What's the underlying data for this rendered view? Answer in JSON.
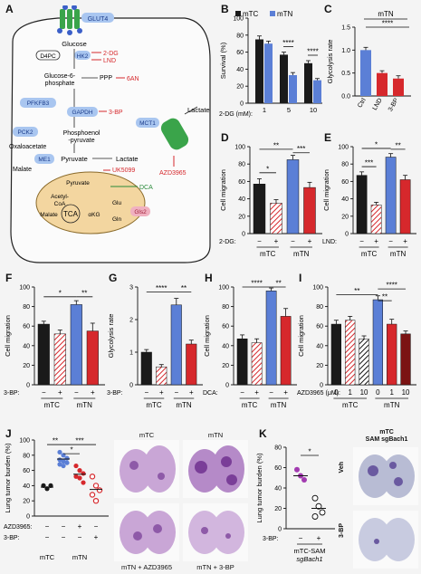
{
  "panel_labels": [
    "A",
    "B",
    "C",
    "D",
    "E",
    "F",
    "G",
    "H",
    "I",
    "J",
    "K"
  ],
  "colors": {
    "mTC": "#1a1a1a",
    "mTN": "#5b7fd6",
    "treat_red": "#d6282c",
    "dark_red": "#7b1313",
    "grey": "#888888"
  },
  "pathway": {
    "labels": {
      "glut4": "GLUT4",
      "glucose": "Glucose",
      "d4pc": "D4PC",
      "hk2": "HK2",
      "dg2": "2-DG",
      "lnd": "LND",
      "g6p": "Glucose-6-\nphosphate",
      "ppp": "PPP",
      "an6": "6AN",
      "pfkfb3": "PFKFB3",
      "gapdh": "GAPDH",
      "bp3": "3-BP",
      "pck2": "PCK2",
      "pep": "Phosphoenol\n-pyruvate",
      "oaa": "Oxaloacetate",
      "me1": "ME1",
      "malate": "Malate",
      "pyruvate": "Pyruvate",
      "lactate": "Lactate",
      "lactate_out": "Lactate",
      "mct1": "MCT1",
      "azd": "AZD3965",
      "uk5099": "UK5099",
      "dca": "DCA",
      "acetylcoa": "Acetyl-\nCoA",
      "tca": "TCA",
      "akg": "αKG",
      "malate2": "Malate",
      "pyruvate2": "Pyruvate",
      "glu": "Glu",
      "gln": "Gln",
      "gls2": "Gls2"
    }
  },
  "chart_data": [
    {
      "id": "B",
      "type": "bar",
      "ylabel": "Survival (%)",
      "xlabel": "2-DG (mM):",
      "ylim": [
        0,
        100
      ],
      "yticks": [
        0,
        20,
        40,
        60,
        80,
        100
      ],
      "categories": [
        "1",
        "5",
        "10"
      ],
      "series": [
        {
          "name": "mTC",
          "values": [
            75,
            57,
            47
          ],
          "err": [
            4,
            3,
            3
          ]
        },
        {
          "name": "mTN",
          "values": [
            70,
            33,
            27
          ],
          "err": [
            3,
            3,
            2
          ]
        }
      ],
      "significance": [
        "****",
        "****"
      ]
    },
    {
      "id": "C",
      "type": "bar",
      "title": "mTN",
      "ylabel": "Glycolysis rate",
      "ylim": [
        0,
        1.5
      ],
      "yticks": [
        0,
        0.5,
        1.0,
        1.5
      ],
      "categories": [
        "Ctrl",
        "LND",
        "3-BP"
      ],
      "values": [
        1.0,
        0.5,
        0.38
      ],
      "err": [
        0.06,
        0.05,
        0.06
      ],
      "significance": [
        "****"
      ]
    },
    {
      "id": "D",
      "type": "bar",
      "ylabel": "Cell migration",
      "treatment": "2-DG:",
      "ylim": [
        0,
        100
      ],
      "yticks": [
        0,
        20,
        40,
        60,
        80,
        100
      ],
      "groups": [
        "mTC",
        "mTN"
      ],
      "signs": [
        "−",
        "+",
        "−",
        "+"
      ],
      "values": [
        57,
        35,
        85,
        53
      ],
      "err": [
        6,
        4,
        5,
        6
      ],
      "significance": [
        "*",
        "**",
        "***"
      ]
    },
    {
      "id": "E",
      "type": "bar",
      "ylabel": "Cell migration",
      "treatment": "LND:",
      "ylim": [
        0,
        100
      ],
      "yticks": [
        0,
        20,
        40,
        60,
        80,
        100
      ],
      "groups": [
        "mTC",
        "mTN"
      ],
      "signs": [
        "−",
        "+",
        "−",
        "+"
      ],
      "values": [
        67,
        33,
        88,
        62
      ],
      "err": [
        4,
        3,
        4,
        5
      ],
      "significance": [
        "*",
        "***",
        "**"
      ]
    },
    {
      "id": "F",
      "type": "bar",
      "ylabel": "Cell migration",
      "treatment": "3-BP:",
      "ylim": [
        0,
        100
      ],
      "yticks": [
        0,
        20,
        40,
        60,
        80,
        100
      ],
      "groups": [
        "mTC",
        "mTN"
      ],
      "signs": [
        "−",
        "+",
        "−",
        "+"
      ],
      "values": [
        62,
        52,
        82,
        55
      ],
      "err": [
        3,
        4,
        4,
        8
      ],
      "significance": [
        "*",
        "**"
      ]
    },
    {
      "id": "G",
      "type": "bar",
      "ylabel": "Glycolysis rate",
      "treatment": "3-BP:",
      "ylim": [
        0,
        3
      ],
      "yticks": [
        0,
        1,
        2,
        3
      ],
      "groups": [
        "mTC",
        "mTN"
      ],
      "signs": [
        "−",
        "+",
        "−",
        "+"
      ],
      "values": [
        1.0,
        0.55,
        2.45,
        1.25
      ],
      "err": [
        0.08,
        0.07,
        0.2,
        0.12
      ],
      "significance": [
        "****",
        "**"
      ]
    },
    {
      "id": "H",
      "type": "bar",
      "ylabel": "Cell migration",
      "treatment": "DCA:",
      "ylim": [
        0,
        100
      ],
      "yticks": [
        0,
        20,
        40,
        60,
        80,
        100
      ],
      "groups": [
        "mTC",
        "mTN"
      ],
      "signs": [
        "−",
        "+",
        "−",
        "+"
      ],
      "values": [
        47,
        43,
        96,
        70
      ],
      "err": [
        4,
        4,
        3,
        8
      ],
      "significance": [
        "****",
        "**"
      ]
    },
    {
      "id": "I",
      "type": "bar",
      "ylabel": "Cell migration",
      "treatment": "AZD3965 (μM):",
      "ylim": [
        0,
        100
      ],
      "yticks": [
        0,
        20,
        40,
        60,
        80,
        100
      ],
      "groups": [
        "mTC",
        "mTN"
      ],
      "signs": [
        "0",
        "1",
        "10",
        "0",
        "1",
        "10"
      ],
      "values": [
        62,
        66,
        47,
        87,
        62,
        52
      ],
      "err": [
        4,
        4,
        3,
        4,
        5,
        3
      ],
      "significance": [
        "**",
        "**",
        "****"
      ]
    },
    {
      "id": "J",
      "type": "scatter",
      "ylabel": "Lung tumor burden (%)",
      "ylim": [
        0,
        100
      ],
      "yticks": [
        0,
        20,
        40,
        60,
        80,
        100
      ],
      "rows": [
        {
          "label": "AZD3965:",
          "signs": [
            "−",
            "−",
            "+",
            "−"
          ]
        },
        {
          "label": "3-BP:",
          "signs": [
            "−",
            "−",
            "−",
            "+"
          ]
        }
      ],
      "groups": [
        "mTC",
        "mTN"
      ],
      "series": [
        {
          "values": [
            40,
            36,
            40
          ],
          "mean": 38
        },
        {
          "values": [
            84,
            80,
            76,
            74,
            72,
            70,
            68,
            66
          ],
          "mean": 75
        },
        {
          "values": [
            66,
            60,
            56,
            52,
            50,
            44
          ],
          "mean": 55
        },
        {
          "values": [
            52,
            40,
            34,
            28,
            20
          ],
          "mean": 35
        }
      ],
      "significance": [
        "**",
        "*",
        "***"
      ]
    },
    {
      "id": "K",
      "type": "scatter",
      "ylabel": "Lung tumor burden (%)",
      "ylim": [
        0,
        80
      ],
      "yticks": [
        0,
        20,
        40,
        60,
        80
      ],
      "rows": [
        {
          "label": "3-BP:",
          "signs": [
            "−",
            "+"
          ]
        }
      ],
      "group_label": "mTC-SAM",
      "group_label2": "sgBach1",
      "series": [
        {
          "values": [
            58,
            52,
            48
          ],
          "mean": 52
        },
        {
          "values": [
            30,
            22,
            16,
            12
          ],
          "mean": 20
        }
      ],
      "significance": [
        "*"
      ]
    }
  ],
  "histology_J": {
    "captions": [
      "mTC",
      "mTN",
      "mTN + AZD3965",
      "mTN + 3-BP"
    ]
  },
  "histology_K": {
    "title1": "mTC",
    "title2": "SAM sgBach1",
    "row_labels": [
      "Veh",
      "3-BP"
    ]
  }
}
